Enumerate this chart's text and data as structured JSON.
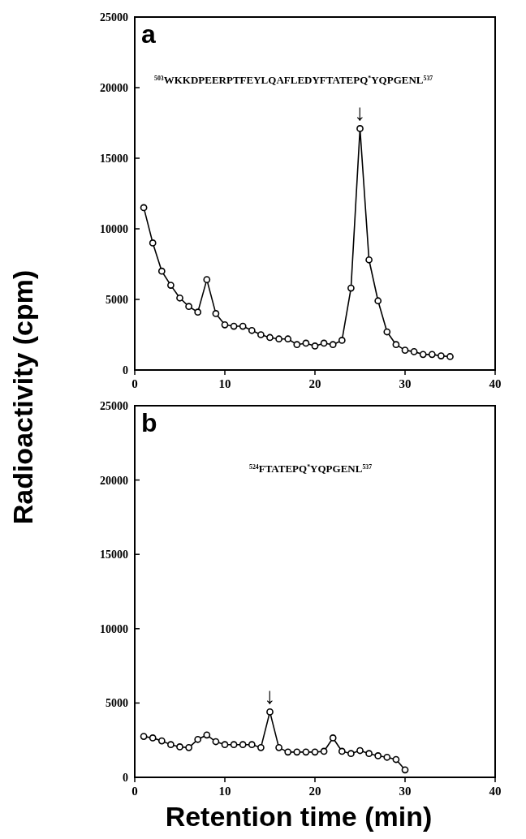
{
  "chart_data": [
    {
      "type": "line",
      "ylabel": "Radioactivity (cpm)",
      "marker": "circle",
      "x": [
        1,
        2,
        3,
        4,
        5,
        6,
        7,
        8,
        9,
        10,
        11,
        12,
        13,
        14,
        15,
        16,
        17,
        18,
        19,
        20,
        21,
        22,
        23,
        24,
        25,
        26,
        27,
        28,
        29,
        30,
        31,
        32,
        33,
        34,
        35
      ],
      "series": [
        {
          "color": "#000000",
          "values": [
            11500,
            9000,
            7000,
            6000,
            5100,
            4500,
            4100,
            6400,
            4000,
            3200,
            3100,
            3100,
            2800,
            2500,
            2300,
            2200,
            2200,
            1800,
            1900,
            1700,
            1900,
            1800,
            2100,
            5800,
            17100,
            7800,
            4900,
            2700,
            1800,
            1400,
            1300,
            1100,
            1100,
            1000,
            950
          ]
        }
      ],
      "xlim": [
        0,
        40
      ],
      "xticks": [
        0,
        10,
        20,
        30,
        40
      ],
      "ylim": [
        0,
        25000
      ],
      "yticks": [
        0,
        5000,
        10000,
        15000,
        20000,
        25000
      ],
      "annotations": [
        "a",
        "$^{503}$WKKDPEERPTFEYLQAFLEDYFTATEPQ$^{*}$YQPGENL$^{537}$",
        {
          "text": "↓",
          "x": 25,
          "y": 17100
        }
      ]
    },
    {
      "type": "line",
      "xlabel": "Retention time (min)",
      "marker": "circle",
      "x": [
        1,
        2,
        3,
        4,
        5,
        6,
        7,
        8,
        9,
        10,
        11,
        12,
        13,
        14,
        15,
        16,
        17,
        18,
        19,
        20,
        21,
        22,
        23,
        24,
        25,
        26,
        27,
        28,
        29,
        30
      ],
      "series": [
        {
          "color": "#000000",
          "values": [
            2750,
            2650,
            2450,
            2200,
            2050,
            2000,
            2550,
            2850,
            2400,
            2200,
            2200,
            2200,
            2200,
            2000,
            4400,
            2000,
            1700,
            1700,
            1700,
            1700,
            1750,
            2650,
            1750,
            1600,
            1800,
            1600,
            1450,
            1350,
            1200,
            500
          ]
        }
      ],
      "xlim": [
        0,
        40
      ],
      "xticks": [
        0,
        10,
        20,
        30,
        40
      ],
      "ylim": [
        0,
        25000
      ],
      "yticks": [
        0,
        5000,
        10000,
        15000,
        20000,
        25000
      ],
      "annotations": [
        "b",
        "$^{524}$FTATEPQ$^{*}$YQPGENL$^{537}$",
        {
          "text": "↓",
          "x": 15,
          "y": 4400
        }
      ]
    }
  ]
}
